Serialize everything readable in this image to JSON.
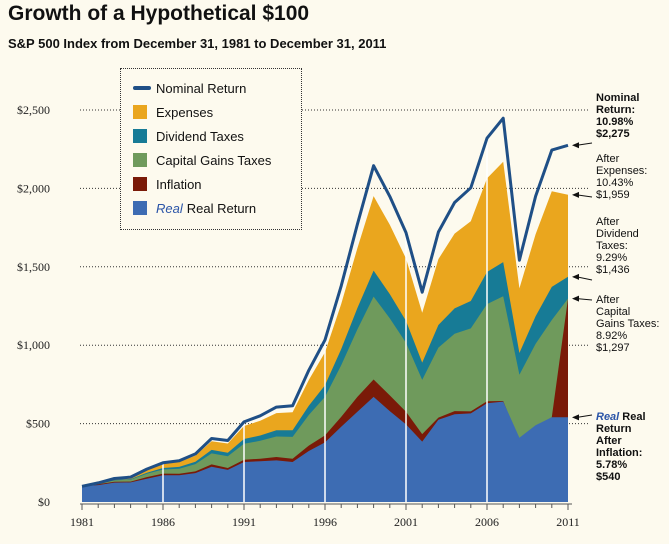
{
  "chart_data": {
    "type": "area",
    "title": "Growth of a Hypothetical $100",
    "subtitle": "S&P 500 Index from December 31, 1981 to December 31, 2011",
    "x": [
      1981,
      1982,
      1983,
      1984,
      1985,
      1986,
      1987,
      1988,
      1989,
      1990,
      1991,
      1992,
      1993,
      1994,
      1995,
      1996,
      1997,
      1998,
      1999,
      2000,
      2001,
      2002,
      2003,
      2004,
      2005,
      2006,
      2007,
      2008,
      2009,
      2010,
      2011
    ],
    "x_ticks": [
      "1981",
      "1986",
      "1991",
      "1996",
      "2001",
      "2006",
      "2011"
    ],
    "y_ticks": [
      "$0",
      "$500",
      "$1,000",
      "$1,500",
      "$2,000",
      "$2,500"
    ],
    "ylim": [
      0,
      2600
    ],
    "series": [
      {
        "name": "Nominal Return",
        "color": "#1f4f86",
        "values": [
          100,
          122,
          150,
          159,
          210,
          250,
          263,
          307,
          405,
          392,
          511,
          550,
          605,
          614,
          840,
          1034,
          1378,
          1772,
          2145,
          1949,
          1718,
          1338,
          1722,
          1910,
          2004,
          2320,
          2448,
          1542,
          1950,
          2244,
          2275
        ]
      },
      {
        "name": "Expenses",
        "color": "#eaa61e",
        "values": [
          100,
          121,
          148,
          157,
          205,
          243,
          255,
          296,
          388,
          373,
          485,
          518,
          567,
          572,
          778,
          955,
          1263,
          1619,
          1951,
          1768,
          1553,
          1207,
          1549,
          1712,
          1790,
          2064,
          2170,
          1362,
          1707,
          1982,
          1959
        ]
      },
      {
        "name": "Dividend Taxes",
        "color": "#177b96",
        "values": [
          100,
          118,
          141,
          146,
          187,
          217,
          224,
          257,
          332,
          314,
          402,
          424,
          458,
          457,
          614,
          745,
          975,
          1237,
          1476,
          1326,
          1155,
          889,
          1129,
          1235,
          1282,
          1467,
          1530,
          950,
          1184,
          1372,
          1436
        ]
      },
      {
        "name": "Capital Gains Taxes",
        "color": "#6f9a5c",
        "values": [
          100,
          117,
          138,
          142,
          180,
          207,
          212,
          242,
          310,
          292,
          371,
          390,
          418,
          415,
          555,
          670,
          872,
          1101,
          1310,
          1171,
          1016,
          779,
          985,
          1073,
          1107,
          1262,
          1312,
          812,
          1008,
          1161,
          1297
        ]
      },
      {
        "name": "Inflation",
        "color": "#7a1a08",
        "values": [
          100,
          113,
          129,
          130,
          159,
          181,
          180,
          195,
          240,
          217,
          269,
          276,
          287,
          276,
          360,
          425,
          543,
          670,
          781,
          680,
          575,
          433,
          538,
          580,
          578,
          643,
          644,
          385,
          480,
          540,
          1297
        ]
      },
      {
        "name": "Real Return",
        "color": "#3d6cb3",
        "values": [
          100,
          108,
          124,
          125,
          148,
          170,
          170,
          184,
          225,
          205,
          255,
          260,
          265,
          255,
          325,
          380,
          480,
          575,
          670,
          580,
          495,
          385,
          525,
          560,
          565,
          630,
          640,
          410,
          490,
          540,
          540
        ]
      }
    ]
  },
  "legend": [
    {
      "label": "Nominal Return",
      "color": "#1f4f86",
      "kind": "line",
      "italic": ""
    },
    {
      "label": "Expenses",
      "color": "#eaa61e",
      "kind": "box",
      "italic": ""
    },
    {
      "label": "Dividend Taxes",
      "color": "#177b96",
      "kind": "box",
      "italic": ""
    },
    {
      "label": "Capital Gains Taxes",
      "color": "#6f9a5c",
      "kind": "box",
      "italic": ""
    },
    {
      "label": "Inflation",
      "color": "#7a1a08",
      "kind": "box",
      "italic": ""
    },
    {
      "label": "Real Return",
      "color": "#3d6cb3",
      "kind": "box",
      "italic": "Real"
    }
  ],
  "annotations": {
    "nominal": "Nominal\nReturn:\n10.98%\n$2,275",
    "expenses": "After\nExpenses:\n10.43%\n$1,959",
    "dividend": "After\nDividend\nTaxes:\n9.29%\n$1,436",
    "capital": "After\nCapital\nGains Taxes:\n8.92%\n$1,297",
    "real_italic": "Real",
    "real_rest": " Real\nReturn\nAfter\nInflation:\n5.78%\n$540"
  }
}
